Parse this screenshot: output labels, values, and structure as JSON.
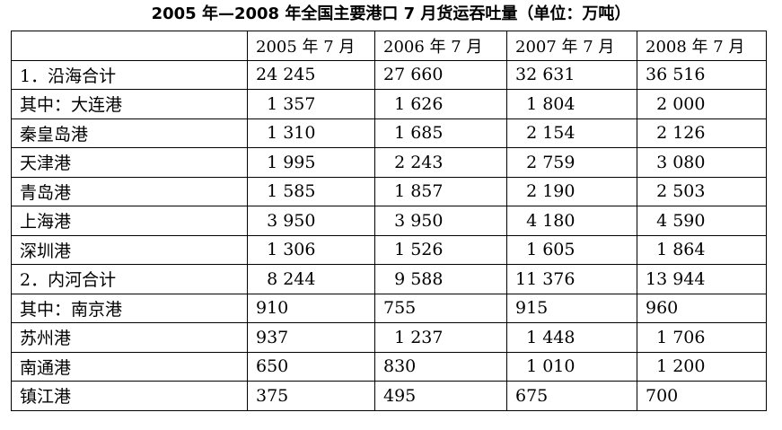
{
  "title": "2005 年—2008 年全国主要港口 7 月货运吞吐量（单位：万吨）",
  "table": {
    "header": [
      "",
      "2005 年 7 月",
      "2006 年 7 月",
      "2007 年 7 月",
      "2008 年 7 月"
    ],
    "rows": [
      [
        "1．沿海合计",
        "24 245",
        "27 660",
        "32 631",
        "36 516"
      ],
      [
        "其中：大连港",
        "  1 357",
        "  1 626",
        "  1 804",
        "  2 000"
      ],
      [
        "秦皇岛港",
        "  1 310",
        "  1 685",
        "  2 154",
        "  2 126"
      ],
      [
        "天津港",
        "  1 995",
        "  2 243",
        "  2 759",
        "  3 080"
      ],
      [
        "青岛港",
        "  1 585",
        "  1 857",
        "  2 190",
        "  2 503"
      ],
      [
        "上海港",
        "  3 950",
        "  3 950",
        "  4 180",
        "  4 590"
      ],
      [
        "深圳港",
        "  1 306",
        "  1 526",
        "  1 605",
        "  1 864"
      ],
      [
        "2．内河合计",
        "  8 244",
        "  9 588",
        "11 376",
        "13 944"
      ],
      [
        "其中：南京港",
        "910",
        "755",
        "915",
        "960"
      ],
      [
        "苏州港",
        "937",
        "  1 237",
        "  1 448",
        "  1 706"
      ],
      [
        "南通港",
        "650",
        "830",
        "  1 010",
        "  1 200"
      ],
      [
        "镇江港",
        "375",
        "495",
        "675",
        "700"
      ]
    ]
  }
}
